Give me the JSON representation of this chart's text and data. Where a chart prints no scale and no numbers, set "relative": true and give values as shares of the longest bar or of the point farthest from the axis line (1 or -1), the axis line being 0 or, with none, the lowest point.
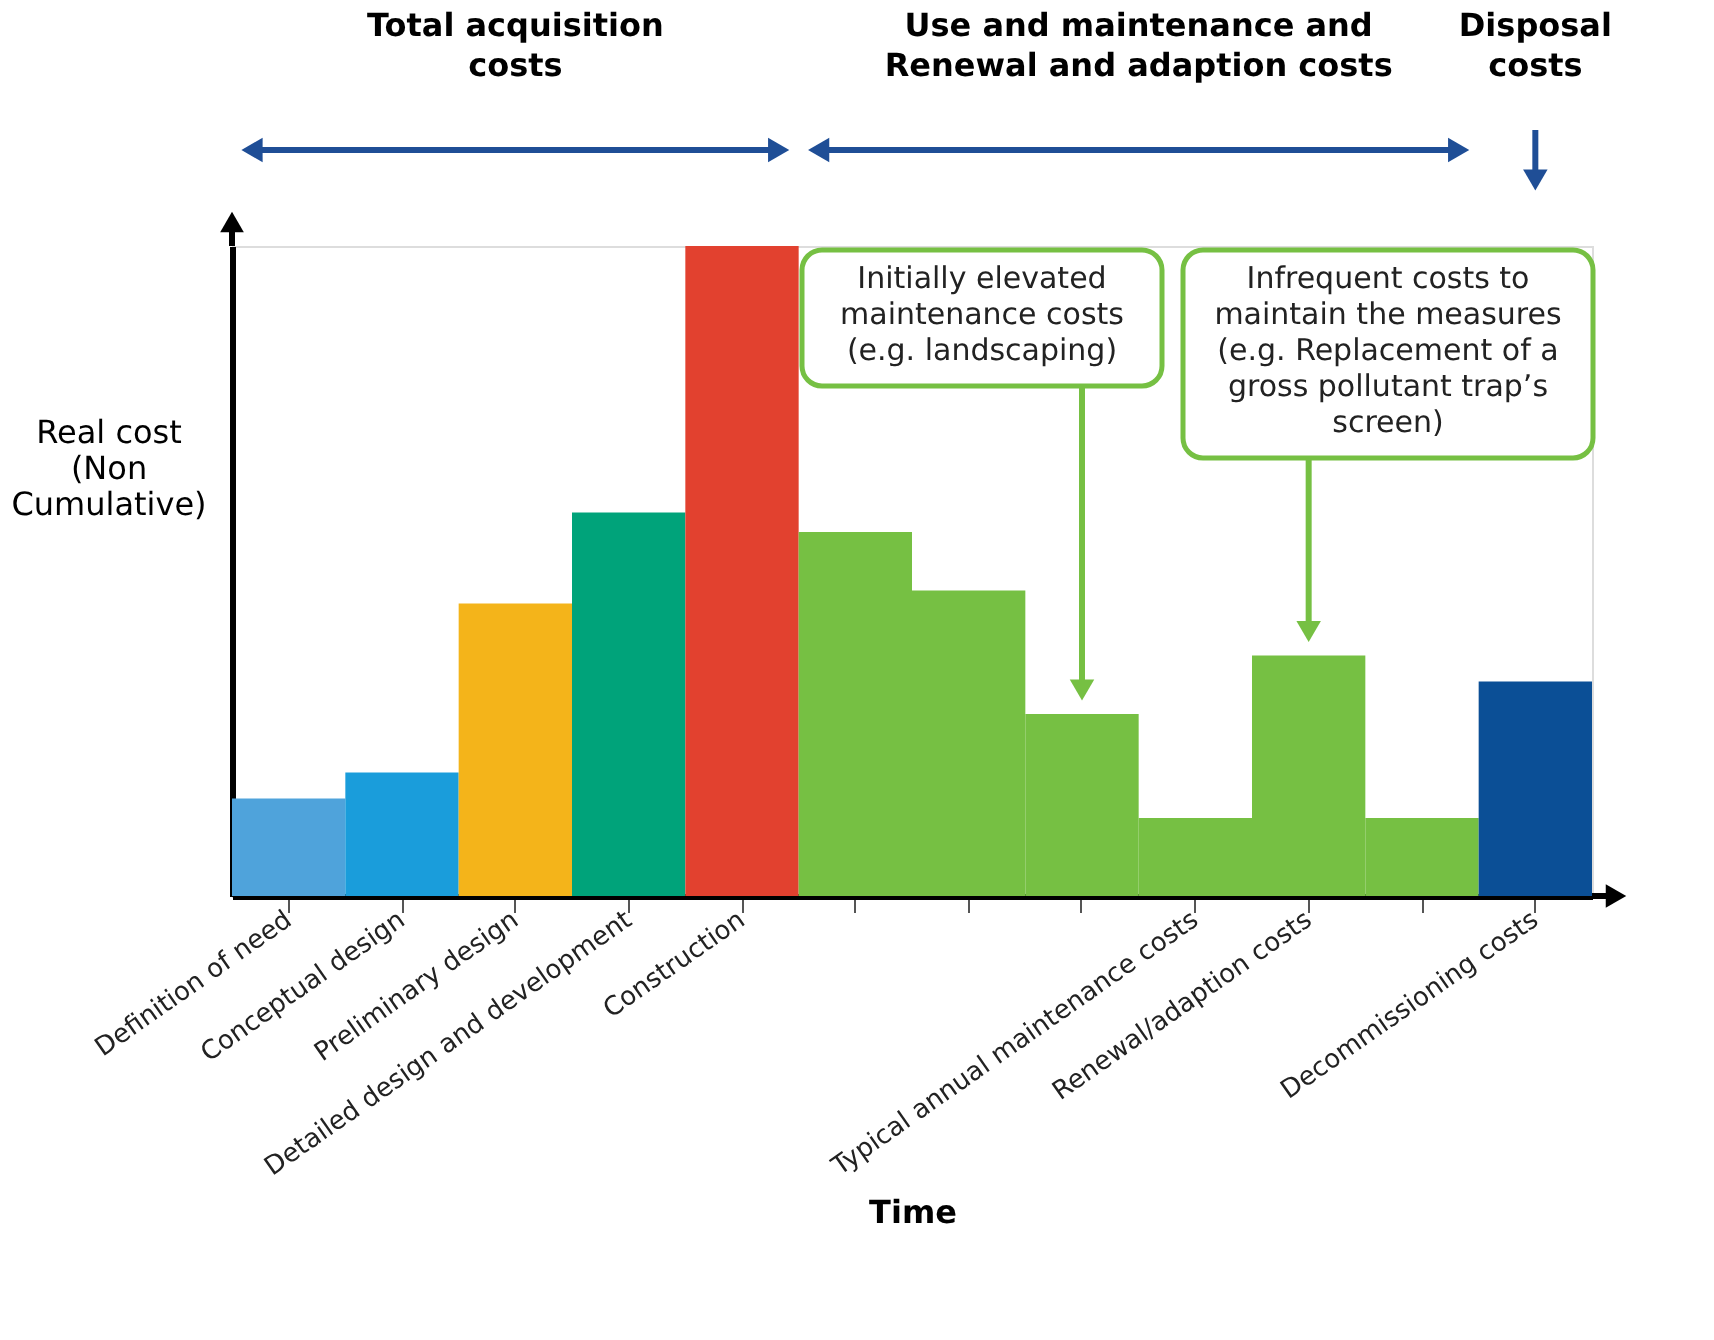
{
  "chart_data": {
    "type": "bar",
    "relative": true,
    "xlabel": "Time",
    "ylabel": "Real cost (Non Cumulative)",
    "categories": [
      "Definition of need",
      "Conceptual design",
      "Preliminary design",
      "Detailed design and development",
      "Construction",
      null,
      null,
      null,
      "Typical annual maintenance costs",
      "Renewal/adaption costs",
      null,
      "Decommissioning costs"
    ],
    "values": [
      0.15,
      0.19,
      0.45,
      0.59,
      1,
      0.56,
      0.47,
      0.28,
      0.12,
      0.37,
      0.12,
      0.33
    ],
    "colors": [
      "#4fa3db",
      "#1a9ddb",
      "#f4b41a",
      "#00a37a",
      "#e2412f",
      "#76c043",
      "#76c043",
      "#76c043",
      "#76c043",
      "#76c043",
      "#76c043",
      "#0b4f96"
    ],
    "annotations": [
      "Total acquisition costs",
      "Use and maintenance and Renewal and adaption costs",
      "Disposal costs",
      "Initially elevated maintenance costs (e.g. landscaping)",
      "Infrequent costs to maintain the measures (e.g. Replacement of a gross pollutant trap’s screen)"
    ],
    "grid": false,
    "legend": false
  }
}
